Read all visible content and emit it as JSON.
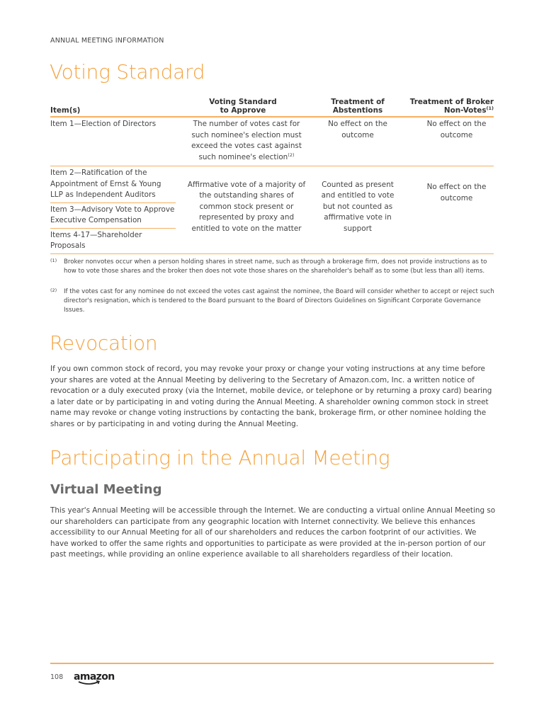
{
  "header": "ANNUAL MEETING INFORMATION",
  "sections": {
    "voting_standard": "Voting Standard",
    "revocation": "Revocation",
    "participating": "Participating in the Annual Meeting",
    "virtual_meeting": "Virtual Meeting"
  },
  "table": {
    "headers": {
      "items": "Item(s)",
      "standard_1": "Voting Standard",
      "standard_2": "to Approve",
      "abst_1": "Treatment of",
      "abst_2": "Abstentions",
      "broker_1": "Treatment of Broker",
      "broker_2": "Non-Votes",
      "broker_sup": "(1)"
    },
    "row1": {
      "item": "Item 1—Election of Directors",
      "standard": "The number of votes cast for such nominee's election must exceed the votes cast against such nominee's election",
      "standard_sup": "(2)",
      "abstentions": "No effect on the outcome",
      "broker": "No effect on the outcome"
    },
    "group": {
      "items": [
        "Item 2—Ratification of the Appointment of Ernst & Young LLP as Independent Auditors",
        "Item 3—Advisory Vote to Approve Executive Compensation",
        "Items 4-17—Shareholder Proposals"
      ],
      "standard": "Affirmative vote of a majority of the outstanding shares of common stock present or represented by proxy and entitled to vote on the matter",
      "abstentions": "Counted as present and entitled to vote but not counted as affirmative vote in support",
      "broker": "No effect on the outcome"
    }
  },
  "footnotes": [
    {
      "mark": "(1)",
      "text": "Broker nonvotes occur when a person holding shares in street name, such as through a brokerage firm, does not provide instructions as to how to vote those shares and the broker then does not vote those shares on the shareholder's behalf as to some (but less than all) items."
    },
    {
      "mark": "(2)",
      "text": "If the votes cast for any nominee do not exceed the votes cast against the nominee, the Board will consider whether to accept or reject such director's resignation, which is tendered to the Board pursuant to the Board of Directors Guidelines on Significant Corporate Governance Issues."
    }
  ],
  "revocation_text": "If you own common stock of record, you may revoke your proxy or change your voting instructions at any time before your shares are voted at the Annual Meeting by delivering to the Secretary of Amazon.com, Inc. a written notice of revocation or a duly executed proxy (via the Internet, mobile device, or telephone or by returning a proxy card) bearing a later date or by participating in and voting during the Annual Meeting. A shareholder owning common stock in street name may revoke or change voting instructions by contacting the bank, brokerage firm, or other nominee holding the shares or by participating in and voting during the Annual Meeting.",
  "virtual_text": "This year's Annual Meeting will be accessible through the Internet. We are conducting a virtual online Annual Meeting so our shareholders can participate from any geographic location with Internet connectivity. We believe this enhances accessibility to our Annual Meeting for all of our shareholders and reduces the carbon footprint of our activities. We have worked to offer the same rights and opportunities to participate as were provided at the in-person portion of our past meetings, while providing an online experience available to all shareholders regardless of their location.",
  "footer": {
    "page_number": "108",
    "logo": "amazon"
  },
  "colors": {
    "accent": "#f4a340",
    "rule": "#f5b060"
  }
}
